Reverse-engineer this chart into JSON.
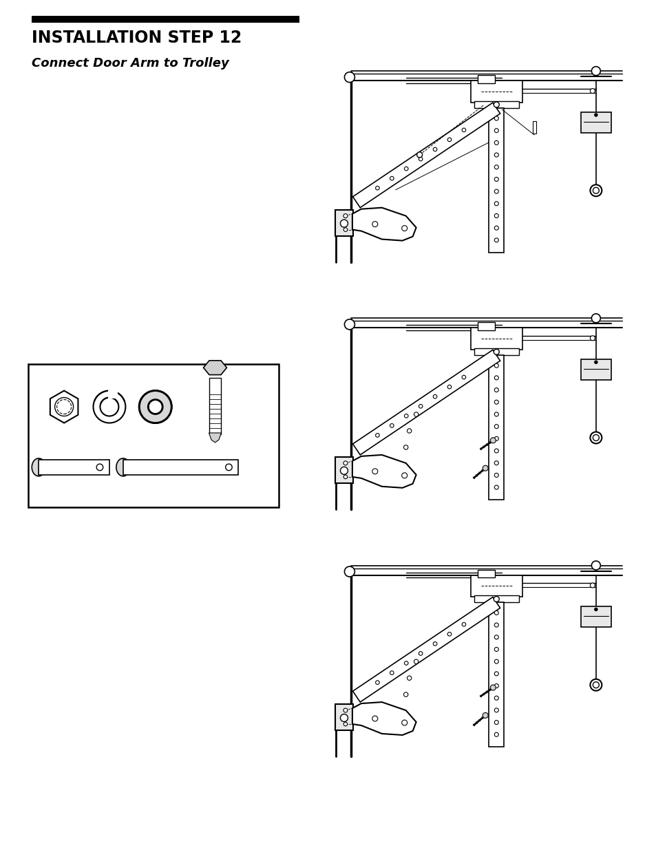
{
  "title_line": "INSTALLATION STEP 12",
  "subtitle": "Connect Door Arm to Trolley",
  "bg_color": "#ffffff",
  "text_color": "#000000",
  "title_fontsize": 17,
  "subtitle_fontsize": 13,
  "page_width": 9.54,
  "page_height": 12.35
}
